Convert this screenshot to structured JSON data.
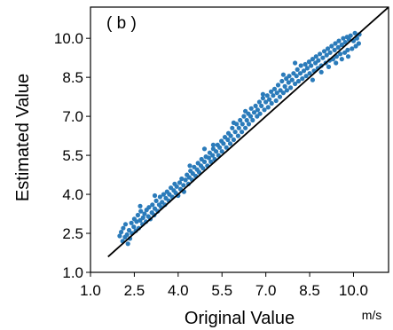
{
  "chart_data": {
    "type": "scatter",
    "panel_label": "( b )",
    "xlabel": "Original Value",
    "ylabel": "Estimated Value",
    "x_unit": "m/s",
    "xlim": [
      1.0,
      11.2
    ],
    "ylim": [
      1.0,
      11.2
    ],
    "xticks": [
      1.0,
      2.5,
      4.0,
      5.5,
      7.0,
      8.5,
      10.0
    ],
    "yticks": [
      1.0,
      2.5,
      4.0,
      5.5,
      7.0,
      8.5,
      10.0
    ],
    "xtick_labels": [
      "1.0",
      "2.5",
      "4.0",
      "5.5",
      "7.0",
      "8.5",
      "10.0"
    ],
    "ytick_labels": [
      "1.0",
      "2.5",
      "4.0",
      "5.5",
      "7.0",
      "8.5",
      "10.0"
    ],
    "grid": false,
    "point_color": "#2b7bba",
    "line_color": "#000000",
    "reference_line": {
      "x": [
        1.6,
        11.2
      ],
      "y": [
        1.6,
        11.2
      ]
    },
    "series": [
      {
        "points": [
          [
            2.0,
            2.4
          ],
          [
            2.05,
            2.55
          ],
          [
            2.1,
            2.2
          ],
          [
            2.12,
            2.7
          ],
          [
            2.18,
            2.35
          ],
          [
            2.2,
            2.85
          ],
          [
            2.25,
            2.45
          ],
          [
            2.28,
            2.1
          ],
          [
            2.32,
            2.62
          ],
          [
            2.35,
            2.3
          ],
          [
            2.4,
            2.9
          ],
          [
            2.42,
            2.5
          ],
          [
            2.48,
            2.75
          ],
          [
            2.5,
            3.05
          ],
          [
            2.55,
            2.6
          ],
          [
            2.58,
            2.95
          ],
          [
            2.62,
            3.2
          ],
          [
            2.65,
            2.7
          ],
          [
            2.7,
            3.0
          ],
          [
            2.72,
            3.35
          ],
          [
            2.78,
            2.85
          ],
          [
            2.8,
            3.1
          ],
          [
            2.85,
            3.25
          ],
          [
            2.9,
            2.95
          ],
          [
            2.92,
            3.4
          ],
          [
            2.98,
            3.15
          ],
          [
            3.0,
            3.5
          ],
          [
            3.05,
            3.05
          ],
          [
            3.1,
            3.3
          ],
          [
            3.12,
            3.6
          ],
          [
            3.18,
            3.2
          ],
          [
            3.2,
            3.45
          ],
          [
            3.25,
            3.75
          ],
          [
            3.3,
            3.35
          ],
          [
            3.35,
            3.6
          ],
          [
            3.38,
            3.9
          ],
          [
            3.42,
            3.5
          ],
          [
            3.45,
            3.7
          ],
          [
            3.5,
            4.0
          ],
          [
            3.55,
            3.6
          ],
          [
            3.58,
            3.85
          ],
          [
            3.62,
            4.1
          ],
          [
            3.68,
            3.75
          ],
          [
            3.7,
            4.0
          ],
          [
            3.75,
            4.25
          ],
          [
            3.8,
            3.9
          ],
          [
            3.85,
            4.15
          ],
          [
            3.88,
            4.4
          ],
          [
            3.92,
            4.05
          ],
          [
            3.95,
            4.3
          ],
          [
            4.0,
            3.95
          ],
          [
            4.05,
            4.45
          ],
          [
            4.08,
            4.2
          ],
          [
            4.12,
            4.6
          ],
          [
            4.18,
            4.35
          ],
          [
            4.2,
            4.1
          ],
          [
            4.25,
            4.55
          ],
          [
            4.3,
            4.75
          ],
          [
            4.35,
            4.4
          ],
          [
            4.38,
            4.65
          ],
          [
            4.42,
            4.9
          ],
          [
            4.48,
            4.55
          ],
          [
            4.5,
            4.8
          ],
          [
            4.55,
            5.05
          ],
          [
            4.6,
            4.7
          ],
          [
            4.65,
            4.95
          ],
          [
            4.68,
            5.2
          ],
          [
            4.72,
            4.85
          ],
          [
            4.78,
            5.1
          ],
          [
            4.8,
            5.35
          ],
          [
            4.85,
            5.0
          ],
          [
            4.9,
            5.25
          ],
          [
            4.95,
            5.45
          ],
          [
            5.0,
            5.1
          ],
          [
            5.05,
            5.4
          ],
          [
            5.08,
            5.6
          ],
          [
            5.12,
            5.25
          ],
          [
            5.18,
            5.5
          ],
          [
            5.2,
            5.75
          ],
          [
            5.25,
            5.35
          ],
          [
            5.3,
            5.65
          ],
          [
            5.35,
            5.9
          ],
          [
            5.38,
            5.5
          ],
          [
            5.42,
            5.8
          ],
          [
            5.48,
            6.05
          ],
          [
            5.5,
            5.65
          ],
          [
            5.55,
            5.95
          ],
          [
            5.6,
            6.2
          ],
          [
            5.65,
            5.8
          ],
          [
            5.7,
            6.1
          ],
          [
            5.72,
            6.35
          ],
          [
            5.78,
            5.95
          ],
          [
            5.8,
            6.25
          ],
          [
            5.85,
            6.55
          ],
          [
            5.9,
            6.1
          ],
          [
            5.95,
            6.4
          ],
          [
            6.0,
            6.7
          ],
          [
            6.05,
            6.25
          ],
          [
            6.08,
            6.55
          ],
          [
            6.12,
            6.85
          ],
          [
            6.18,
            6.4
          ],
          [
            6.2,
            6.7
          ],
          [
            6.25,
            7.0
          ],
          [
            6.3,
            6.55
          ],
          [
            6.35,
            6.85
          ],
          [
            6.4,
            7.1
          ],
          [
            6.42,
            6.7
          ],
          [
            6.48,
            7.0
          ],
          [
            6.5,
            7.3
          ],
          [
            6.55,
            6.85
          ],
          [
            6.6,
            7.15
          ],
          [
            6.65,
            7.4
          ],
          [
            6.7,
            7.0
          ],
          [
            6.72,
            7.25
          ],
          [
            6.78,
            7.55
          ],
          [
            6.8,
            7.1
          ],
          [
            6.85,
            7.4
          ],
          [
            6.9,
            7.7
          ],
          [
            6.95,
            7.25
          ],
          [
            7.0,
            7.55
          ],
          [
            7.05,
            7.8
          ],
          [
            7.08,
            7.35
          ],
          [
            7.12,
            7.65
          ],
          [
            7.18,
            7.95
          ],
          [
            7.2,
            7.5
          ],
          [
            7.25,
            7.8
          ],
          [
            7.3,
            8.05
          ],
          [
            7.35,
            7.6
          ],
          [
            7.38,
            7.9
          ],
          [
            7.42,
            8.2
          ],
          [
            7.48,
            7.75
          ],
          [
            7.5,
            8.0
          ],
          [
            7.55,
            8.35
          ],
          [
            7.6,
            7.9
          ],
          [
            7.65,
            8.15
          ],
          [
            7.7,
            8.45
          ],
          [
            7.72,
            8.0
          ],
          [
            7.78,
            8.3
          ],
          [
            7.8,
            8.55
          ],
          [
            7.85,
            8.1
          ],
          [
            7.9,
            8.4
          ],
          [
            7.95,
            8.65
          ],
          [
            8.0,
            8.25
          ],
          [
            8.05,
            8.55
          ],
          [
            8.08,
            8.8
          ],
          [
            8.12,
            8.35
          ],
          [
            8.18,
            8.65
          ],
          [
            8.2,
            8.95
          ],
          [
            8.25,
            8.45
          ],
          [
            8.3,
            8.75
          ],
          [
            8.35,
            9.0
          ],
          [
            8.38,
            8.55
          ],
          [
            8.42,
            8.85
          ],
          [
            8.48,
            9.1
          ],
          [
            8.5,
            8.65
          ],
          [
            8.55,
            8.95
          ],
          [
            8.6,
            9.2
          ],
          [
            8.65,
            8.75
          ],
          [
            8.7,
            9.05
          ],
          [
            8.72,
            9.3
          ],
          [
            8.78,
            8.85
          ],
          [
            8.8,
            9.15
          ],
          [
            8.85,
            9.4
          ],
          [
            8.9,
            8.95
          ],
          [
            8.95,
            9.25
          ],
          [
            9.0,
            9.5
          ],
          [
            9.05,
            9.05
          ],
          [
            9.08,
            9.35
          ],
          [
            9.12,
            9.6
          ],
          [
            9.18,
            9.15
          ],
          [
            9.2,
            9.45
          ],
          [
            9.25,
            9.7
          ],
          [
            9.3,
            9.2
          ],
          [
            9.35,
            9.55
          ],
          [
            9.38,
            9.8
          ],
          [
            9.42,
            9.3
          ],
          [
            9.48,
            9.65
          ],
          [
            9.5,
            9.9
          ],
          [
            9.55,
            9.4
          ],
          [
            9.6,
            9.75
          ],
          [
            9.65,
            10.0
          ],
          [
            9.7,
            9.45
          ],
          [
            9.72,
            9.85
          ],
          [
            9.78,
            10.05
          ],
          [
            9.8,
            9.55
          ],
          [
            9.85,
            9.95
          ],
          [
            9.9,
            10.1
          ],
          [
            9.95,
            9.6
          ],
          [
            10.0,
            9.9
          ],
          [
            10.05,
            10.2
          ],
          [
            10.08,
            9.7
          ],
          [
            10.12,
            10.0
          ],
          [
            10.18,
            9.8
          ],
          [
            10.2,
            10.15
          ],
          [
            9.82,
            9.3
          ],
          [
            9.6,
            9.2
          ],
          [
            9.4,
            9.05
          ],
          [
            9.15,
            8.9
          ],
          [
            8.9,
            8.7
          ],
          [
            8.6,
            8.4
          ],
          [
            5.2,
            5.9
          ],
          [
            4.4,
            5.1
          ],
          [
            6.9,
            7.85
          ],
          [
            8.0,
            9.05
          ],
          [
            3.2,
            3.95
          ],
          [
            2.7,
            3.55
          ],
          [
            5.9,
            6.75
          ],
          [
            7.6,
            8.6
          ],
          [
            4.9,
            5.75
          ],
          [
            6.3,
            7.2
          ]
        ]
      }
    ]
  }
}
